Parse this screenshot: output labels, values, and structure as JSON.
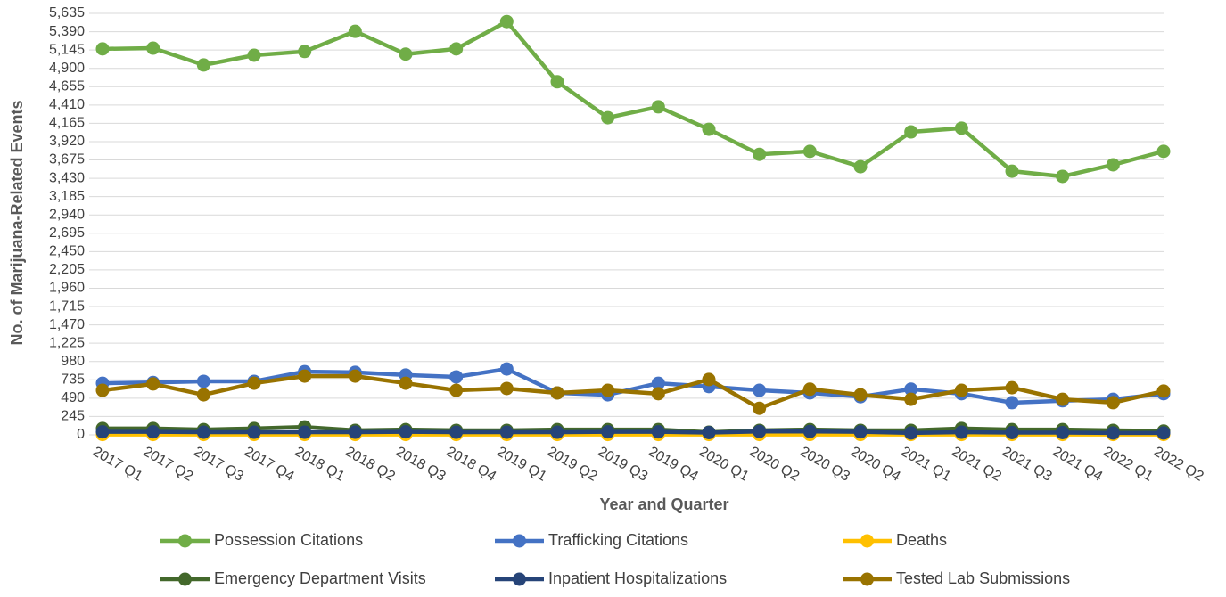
{
  "chart_data": {
    "type": "line",
    "x_label": "Year and Quarter",
    "y_label": "No. of Marijuana-Related Events",
    "categories": [
      "2017 Q1",
      "2017 Q2",
      "2017 Q3",
      "2017 Q4",
      "2018 Q1",
      "2018 Q2",
      "2018 Q3",
      "2018 Q4",
      "2019 Q1",
      "2019 Q2",
      "2019 Q3",
      "2019 Q4",
      "2020 Q1",
      "2020 Q2",
      "2020 Q3",
      "2020 Q4",
      "2021 Q1",
      "2021 Q2",
      "2021 Q3",
      "2021 Q4",
      "2022 Q1",
      "2022 Q2"
    ],
    "ylim": [
      0,
      5635
    ],
    "yticks": [
      0,
      245,
      490,
      735,
      980,
      {
        "value": 1225,
        "label": "1,225"
      },
      {
        "value": 1470,
        "label": "1,470"
      },
      {
        "value": 1715,
        "label": "1,715"
      },
      {
        "value": 1960,
        "label": "1,960"
      },
      {
        "value": 2205,
        "label": "2,205"
      },
      {
        "value": 2450,
        "label": "2,450"
      },
      {
        "value": 2695,
        "label": "2,695"
      },
      {
        "value": 2940,
        "label": "2,940"
      },
      {
        "value": 3185,
        "label": "3,185"
      },
      {
        "value": 3430,
        "label": "3,430"
      },
      {
        "value": 3675,
        "label": "3,675"
      },
      {
        "value": 3920,
        "label": "3,920"
      },
      {
        "value": 4165,
        "label": "4,165"
      },
      {
        "value": 4410,
        "label": "4,410"
      },
      {
        "value": 4655,
        "label": "4,655"
      },
      {
        "value": 4900,
        "label": "4,900"
      },
      {
        "value": 5145,
        "label": "5,145"
      },
      {
        "value": 5390,
        "label": "5,390"
      },
      {
        "value": 5635,
        "label": "5,635"
      }
    ],
    "grid": true,
    "legend": "bottom",
    "series": [
      {
        "name": "Possession Citations",
        "color": "#70ad47",
        "values": [
          5160,
          5170,
          4945,
          5075,
          5125,
          5395,
          5090,
          5160,
          5525,
          4720,
          4240,
          4385,
          4085,
          3750,
          3790,
          3585,
          4050,
          4100,
          3525,
          3455,
          3610,
          3790
        ]
      },
      {
        "name": "Trafficking Citations",
        "color": "#4472c4",
        "values": [
          690,
          700,
          715,
          715,
          845,
          835,
          800,
          775,
          880,
          560,
          535,
          690,
          645,
          595,
          560,
          510,
          610,
          550,
          430,
          455,
          475,
          550
        ]
      },
      {
        "name": "Deaths",
        "color": "#ffc000",
        "values": [
          5,
          5,
          5,
          5,
          5,
          5,
          5,
          5,
          5,
          5,
          5,
          5,
          5,
          5,
          5,
          5,
          5,
          5,
          5,
          5,
          5,
          5
        ]
      },
      {
        "name": "Emergency Department Visits",
        "color": "#43682b",
        "values": [
          85,
          85,
          70,
          85,
          105,
          60,
          70,
          60,
          60,
          70,
          70,
          70,
          35,
          60,
          70,
          60,
          60,
          85,
          70,
          70,
          60,
          50
        ]
      },
      {
        "name": "Inpatient Hospitalizations",
        "color": "#264478",
        "values": [
          40,
          40,
          35,
          35,
          35,
          35,
          40,
          35,
          35,
          35,
          40,
          40,
          30,
          45,
          45,
          40,
          25,
          35,
          30,
          30,
          25,
          25
        ]
      },
      {
        "name": "Tested Lab Submissions",
        "color": "#997300",
        "values": [
          595,
          680,
          535,
          690,
          785,
          785,
          690,
          595,
          620,
          560,
          595,
          550,
          740,
          355,
          610,
          535,
          475,
          595,
          630,
          475,
          430,
          585
        ]
      }
    ]
  }
}
